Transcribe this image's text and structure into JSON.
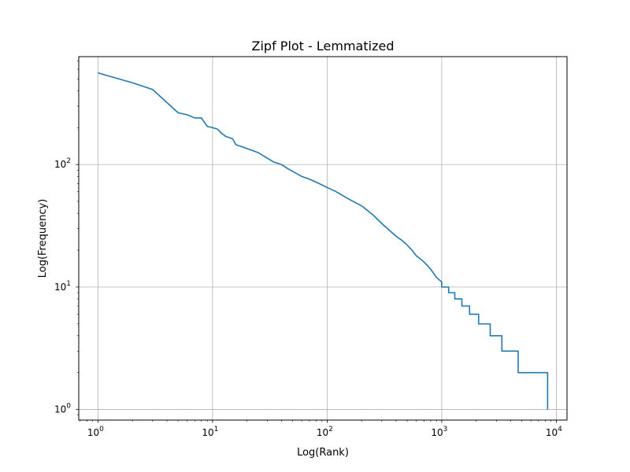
{
  "chart_data": {
    "type": "line",
    "title": "Zipf Plot - Lemmatized",
    "xlabel": "Log(Rank)",
    "ylabel": "Log(Frequency)",
    "x_scale": "log",
    "y_scale": "log",
    "xlim": [
      0.68,
      12400
    ],
    "ylim": [
      0.82,
      760
    ],
    "grid": true,
    "x_major_ticks": [
      {
        "base": "10",
        "exp": "0",
        "value": 1
      },
      {
        "base": "10",
        "exp": "1",
        "value": 10
      },
      {
        "base": "10",
        "exp": "2",
        "value": 100
      },
      {
        "base": "10",
        "exp": "3",
        "value": 1000
      },
      {
        "base": "10",
        "exp": "4",
        "value": 10000
      }
    ],
    "y_major_ticks": [
      {
        "base": "10",
        "exp": "0",
        "value": 1
      },
      {
        "base": "10",
        "exp": "1",
        "value": 10
      },
      {
        "base": "10",
        "exp": "2",
        "value": 100
      }
    ],
    "line_color": "#1f77b4",
    "series": [
      {
        "x": [
          1,
          2,
          3,
          5,
          6,
          7,
          8,
          9,
          10,
          11,
          12,
          13,
          15,
          16,
          18,
          20,
          25,
          30,
          34,
          40,
          45,
          50,
          60,
          70,
          80,
          100,
          120,
          150,
          200,
          250,
          300,
          350,
          400,
          450,
          500,
          550,
          600,
          650,
          700,
          750,
          800,
          900,
          1000,
          1200,
          1400,
          1600,
          1800,
          2100,
          2600,
          3300,
          4600,
          8400
        ],
        "y": [
          560,
          465,
          410,
          265,
          255,
          240,
          240,
          205,
          200,
          195,
          180,
          170,
          162,
          145,
          140,
          135,
          125,
          113,
          105,
          100,
          93,
          88,
          80,
          76,
          72,
          65,
          60,
          53,
          46,
          39,
          33,
          29,
          26,
          24,
          22,
          20,
          18,
          17,
          16,
          15,
          14,
          12,
          11,
          10,
          9,
          8,
          7,
          6,
          5,
          4,
          2,
          1
        ],
        "step_after": [
          false,
          false,
          false,
          false,
          false,
          false,
          false,
          false,
          false,
          false,
          false,
          false,
          false,
          false,
          false,
          false,
          false,
          false,
          false,
          false,
          false,
          false,
          false,
          false,
          false,
          false,
          false,
          false,
          false,
          false,
          false,
          false,
          false,
          false,
          false,
          false,
          false,
          false,
          false,
          false,
          false,
          false,
          false,
          false,
          false,
          false,
          false,
          false,
          false,
          false,
          false,
          false
        ]
      }
    ],
    "steps": [
      {
        "x0": 1000,
        "x1": 1150,
        "y": 10
      },
      {
        "x0": 1150,
        "x1": 1300,
        "y": 9
      },
      {
        "x0": 1300,
        "x1": 1500,
        "y": 8
      },
      {
        "x0": 1500,
        "x1": 1750,
        "y": 7
      },
      {
        "x0": 1750,
        "x1": 2100,
        "y": 6
      },
      {
        "x0": 2100,
        "x1": 2650,
        "y": 5
      },
      {
        "x0": 2650,
        "x1": 3350,
        "y": 4
      },
      {
        "x0": 3350,
        "x1": 4650,
        "y": 3
      },
      {
        "x0": 4650,
        "x1": 8400,
        "y": 2
      }
    ]
  }
}
